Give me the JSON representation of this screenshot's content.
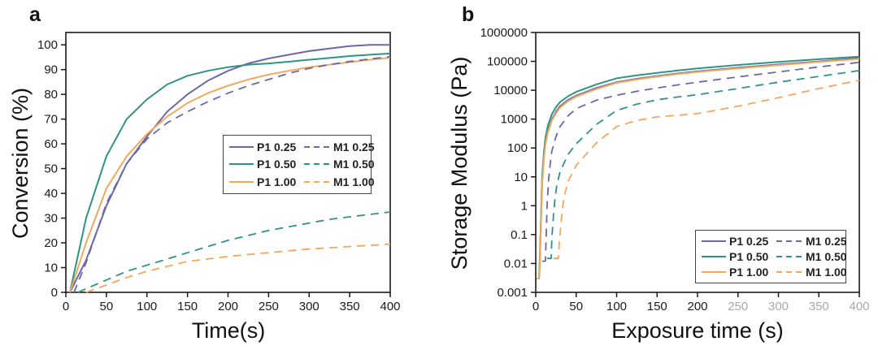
{
  "figure": {
    "panels": [
      {
        "tag": "a",
        "xlabel": "Time(s)",
        "ylabel": "Conversion (%)"
      },
      {
        "tag": "b",
        "xlabel": "Exposure time (s)",
        "ylabel": "Storage Modulus (Pa)"
      }
    ]
  },
  "colors": {
    "axis": "#1a1a1a",
    "tick_label": "#1a1a1a",
    "faded_tick_label": "#a9a9a9",
    "purple": "#6c68a8",
    "teal": "#2f9484",
    "orange": "#f0a85f",
    "legend_border": "#444444",
    "background": "#ffffff"
  },
  "chart_data": [
    {
      "type": "line",
      "panel": "a",
      "title": "",
      "xlabel": "Time(s)",
      "ylabel": "Conversion (%)",
      "xlim": [
        0,
        400
      ],
      "ylim": [
        0,
        105
      ],
      "xticks": [
        0,
        50,
        100,
        150,
        200,
        250,
        300,
        350,
        400
      ],
      "yticks": [
        0,
        10,
        20,
        30,
        40,
        50,
        60,
        70,
        80,
        90,
        100
      ],
      "yscale": "linear",
      "grid": false,
      "legend_position": "inside-middle-right",
      "series": [
        {
          "name": "P1 0.25",
          "color": "#6c68a8",
          "style": "solid",
          "points": [
            [
              5,
              0
            ],
            [
              25,
              13
            ],
            [
              50,
              35
            ],
            [
              75,
              52
            ],
            [
              100,
              63
            ],
            [
              125,
              73
            ],
            [
              150,
              80
            ],
            [
              175,
              85.5
            ],
            [
              200,
              89.5
            ],
            [
              225,
              92.5
            ],
            [
              250,
              94.5
            ],
            [
              275,
              96
            ],
            [
              300,
              97.5
            ],
            [
              325,
              98.5
            ],
            [
              350,
              99.5
            ],
            [
              375,
              100
            ],
            [
              400,
              100
            ]
          ]
        },
        {
          "name": "P1 0.50",
          "color": "#2f9484",
          "style": "solid",
          "points": [
            [
              5,
              0
            ],
            [
              25,
              30
            ],
            [
              50,
              55
            ],
            [
              75,
              70
            ],
            [
              100,
              78
            ],
            [
              125,
              84
            ],
            [
              150,
              87.5
            ],
            [
              175,
              89.5
            ],
            [
              200,
              91
            ],
            [
              225,
              92
            ],
            [
              250,
              92.5
            ],
            [
              275,
              93.2
            ],
            [
              300,
              94
            ],
            [
              325,
              94.7
            ],
            [
              350,
              95.5
            ],
            [
              375,
              96
            ],
            [
              400,
              96.5
            ]
          ]
        },
        {
          "name": "P1 1.00",
          "color": "#f0a85f",
          "style": "solid",
          "points": [
            [
              5,
              0
            ],
            [
              25,
              20
            ],
            [
              50,
              42
            ],
            [
              75,
              55
            ],
            [
              100,
              64
            ],
            [
              125,
              71
            ],
            [
              150,
              76.5
            ],
            [
              175,
              80.5
            ],
            [
              200,
              83.5
            ],
            [
              225,
              86
            ],
            [
              250,
              88
            ],
            [
              275,
              89.5
            ],
            [
              300,
              91
            ],
            [
              325,
              92
            ],
            [
              350,
              93
            ],
            [
              375,
              94
            ],
            [
              400,
              94.8
            ]
          ]
        },
        {
          "name": "M1 0.25",
          "color": "#6c68a8",
          "style": "dashed",
          "points": [
            [
              10,
              0
            ],
            [
              25,
              12
            ],
            [
              50,
              36
            ],
            [
              75,
              52
            ],
            [
              100,
              62
            ],
            [
              125,
              68.5
            ],
            [
              150,
              73
            ],
            [
              175,
              77
            ],
            [
              200,
              80.5
            ],
            [
              225,
              83.5
            ],
            [
              250,
              86
            ],
            [
              275,
              88.5
            ],
            [
              300,
              90.5
            ],
            [
              325,
              92
            ],
            [
              350,
              93.3
            ],
            [
              375,
              94.3
            ],
            [
              400,
              95.2
            ]
          ]
        },
        {
          "name": "M1 0.50",
          "color": "#2f9484",
          "style": "dashed",
          "points": [
            [
              15,
              0
            ],
            [
              25,
              1.5
            ],
            [
              50,
              5
            ],
            [
              75,
              8.5
            ],
            [
              100,
              11
            ],
            [
              125,
              13.5
            ],
            [
              150,
              16
            ],
            [
              175,
              18.5
            ],
            [
              200,
              21
            ],
            [
              225,
              23
            ],
            [
              250,
              25
            ],
            [
              275,
              26.5
            ],
            [
              300,
              28
            ],
            [
              325,
              29.5
            ],
            [
              350,
              30.5
            ],
            [
              375,
              31.5
            ],
            [
              400,
              32.5
            ]
          ]
        },
        {
          "name": "M1 1.00",
          "color": "#f0a85f",
          "style": "dashed",
          "points": [
            [
              25,
              0
            ],
            [
              50,
              3
            ],
            [
              75,
              6
            ],
            [
              100,
              8.5
            ],
            [
              125,
              10.5
            ],
            [
              150,
              12.5
            ],
            [
              175,
              13.5
            ],
            [
              200,
              14.5
            ],
            [
              225,
              15.3
            ],
            [
              250,
              16
            ],
            [
              275,
              16.8
            ],
            [
              300,
              17.5
            ],
            [
              325,
              18
            ],
            [
              350,
              18.5
            ],
            [
              375,
              19
            ],
            [
              400,
              19.5
            ]
          ]
        }
      ]
    },
    {
      "type": "line",
      "panel": "b",
      "title": "",
      "xlabel": "Exposure time (s)",
      "ylabel": "Storage Modulus (Pa)",
      "xlim": [
        0,
        400
      ],
      "ylim": [
        0.001,
        1000000
      ],
      "xticks": [
        0,
        50,
        100,
        150,
        200,
        250,
        300,
        350,
        400
      ],
      "faded_xticks": [
        250,
        300,
        350,
        400
      ],
      "yticks": [
        0.001,
        0.01,
        0.1,
        1,
        10,
        100,
        1000,
        10000,
        100000,
        1000000
      ],
      "ytick_labels": [
        "0.001",
        "0.01",
        "0.1",
        "1",
        "10",
        "100",
        "1000",
        "10000",
        "100000",
        "1000000"
      ],
      "yscale": "log",
      "grid": false,
      "legend_position": "inside-bottom-right",
      "series": [
        {
          "name": "P1 0.25",
          "color": "#6c68a8",
          "style": "solid",
          "points": [
            [
              1,
              0.003
            ],
            [
              4,
              0.003
            ],
            [
              5,
              0.01
            ],
            [
              6,
              0.1
            ],
            [
              7,
              1
            ],
            [
              8,
              8
            ],
            [
              10,
              50
            ],
            [
              12,
              150
            ],
            [
              15,
              400
            ],
            [
              20,
              1000
            ],
            [
              25,
              1800
            ],
            [
              30,
              2800
            ],
            [
              40,
              4600
            ],
            [
              50,
              6500
            ],
            [
              75,
              12000
            ],
            [
              100,
              19000
            ],
            [
              125,
              25000
            ],
            [
              150,
              31000
            ],
            [
              175,
              38000
            ],
            [
              200,
              45000
            ],
            [
              250,
              60000
            ],
            [
              300,
              78000
            ],
            [
              350,
              100000
            ],
            [
              400,
              130000
            ]
          ]
        },
        {
          "name": "P1 0.50",
          "color": "#2f9484",
          "style": "solid",
          "points": [
            [
              1,
              0.003
            ],
            [
              4,
              0.003
            ],
            [
              5,
              0.015
            ],
            [
              6,
              0.15
            ],
            [
              7,
              1.5
            ],
            [
              8,
              12
            ],
            [
              10,
              70
            ],
            [
              12,
              220
            ],
            [
              15,
              600
            ],
            [
              20,
              1500
            ],
            [
              25,
              2600
            ],
            [
              30,
              3900
            ],
            [
              40,
              6200
            ],
            [
              50,
              8800
            ],
            [
              75,
              16000
            ],
            [
              100,
              26000
            ],
            [
              125,
              33000
            ],
            [
              150,
              40000
            ],
            [
              175,
              48000
            ],
            [
              200,
              57000
            ],
            [
              250,
              75000
            ],
            [
              300,
              96000
            ],
            [
              350,
              119000
            ],
            [
              400,
              145000
            ]
          ]
        },
        {
          "name": "P1 1.00",
          "color": "#f0a85f",
          "style": "solid",
          "points": [
            [
              1,
              0.003
            ],
            [
              4,
              0.003
            ],
            [
              5,
              0.008
            ],
            [
              6,
              0.08
            ],
            [
              7,
              0.8
            ],
            [
              8,
              6
            ],
            [
              10,
              40
            ],
            [
              12,
              130
            ],
            [
              15,
              350
            ],
            [
              20,
              900
            ],
            [
              25,
              1600
            ],
            [
              30,
              2500
            ],
            [
              40,
              4200
            ],
            [
              50,
              6000
            ],
            [
              75,
              11000
            ],
            [
              100,
              18000
            ],
            [
              125,
              23500
            ],
            [
              150,
              29500
            ],
            [
              175,
              36000
            ],
            [
              200,
              43000
            ],
            [
              250,
              57000
            ],
            [
              300,
              74000
            ],
            [
              350,
              96000
            ],
            [
              400,
              121000
            ]
          ]
        },
        {
          "name": "M1 0.25",
          "color": "#6c68a8",
          "style": "dashed",
          "points": [
            [
              8,
              0.012
            ],
            [
              12,
              0.012
            ],
            [
              13,
              0.1
            ],
            [
              14,
              1
            ],
            [
              16,
              8
            ],
            [
              18,
              30
            ],
            [
              20,
              80
            ],
            [
              25,
              250
            ],
            [
              30,
              550
            ],
            [
              40,
              1300
            ],
            [
              50,
              2300
            ],
            [
              75,
              4500
            ],
            [
              100,
              6700
            ],
            [
              125,
              9200
            ],
            [
              150,
              12000
            ],
            [
              175,
              15200
            ],
            [
              200,
              19000
            ],
            [
              250,
              29000
            ],
            [
              300,
              43000
            ],
            [
              350,
              64000
            ],
            [
              400,
              92000
            ]
          ]
        },
        {
          "name": "M1 0.50",
          "color": "#2f9484",
          "style": "dashed",
          "points": [
            [
              14,
              0.015
            ],
            [
              19,
              0.015
            ],
            [
              20,
              0.08
            ],
            [
              22,
              0.5
            ],
            [
              24,
              2
            ],
            [
              26,
              5
            ],
            [
              30,
              15
            ],
            [
              40,
              60
            ],
            [
              50,
              140
            ],
            [
              75,
              650
            ],
            [
              100,
              2000
            ],
            [
              125,
              3300
            ],
            [
              150,
              4700
            ],
            [
              175,
              5800
            ],
            [
              200,
              7000
            ],
            [
              250,
              11500
            ],
            [
              300,
              19000
            ],
            [
              350,
              30000
            ],
            [
              400,
              48000
            ]
          ]
        },
        {
          "name": "M1 1.00",
          "color": "#f0a85f",
          "style": "dashed",
          "points": [
            [
              22,
              0.015
            ],
            [
              28,
              0.015
            ],
            [
              29,
              0.05
            ],
            [
              31,
              0.2
            ],
            [
              33,
              0.8
            ],
            [
              35,
              2
            ],
            [
              40,
              7
            ],
            [
              50,
              25
            ],
            [
              75,
              150
            ],
            [
              100,
              550
            ],
            [
              125,
              900
            ],
            [
              150,
              1200
            ],
            [
              175,
              1350
            ],
            [
              200,
              1550
            ],
            [
              250,
              2800
            ],
            [
              300,
              5500
            ],
            [
              350,
              11500
            ],
            [
              400,
              22000
            ]
          ]
        }
      ]
    }
  ]
}
